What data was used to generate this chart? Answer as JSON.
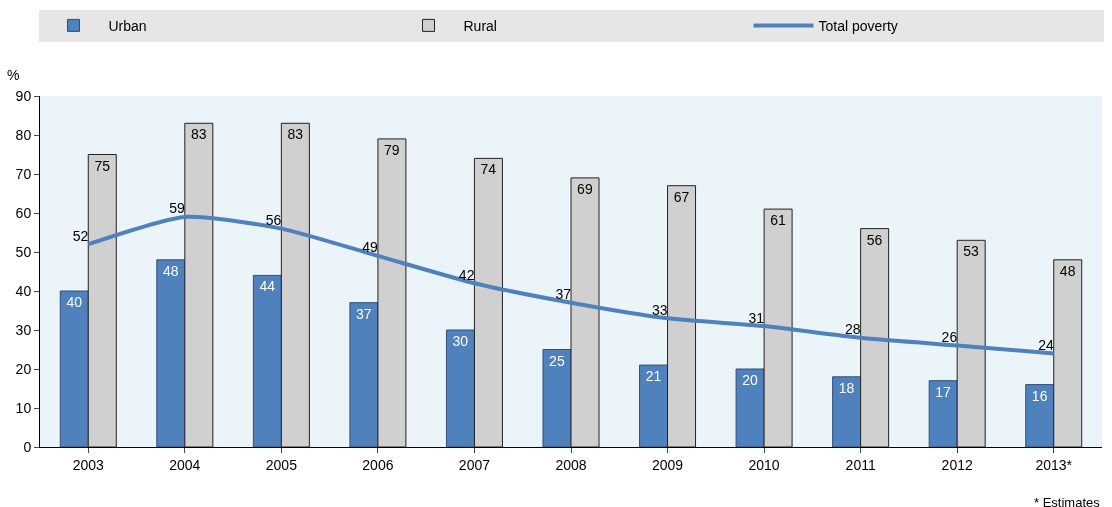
{
  "chart_data": {
    "type": "bar",
    "ylabel": "%",
    "categories": [
      "2003",
      "2004",
      "2005",
      "2006",
      "2007",
      "2008",
      "2009",
      "2010",
      "2011",
      "2012",
      "2013*"
    ],
    "series": [
      {
        "name": "Urban",
        "color": "#4f81bd",
        "values": [
          40,
          48,
          44,
          37,
          30,
          25,
          21,
          20,
          18,
          17,
          16
        ]
      },
      {
        "name": "Rural",
        "color": "#d0d0d0",
        "values": [
          75,
          83,
          83,
          79,
          74,
          69,
          67,
          61,
          56,
          53,
          48
        ]
      },
      {
        "name": "Total poverty",
        "type": "line",
        "color": "#4f81bd",
        "values": [
          52,
          59,
          56,
          49,
          42,
          37,
          33,
          31,
          28,
          26,
          24
        ]
      }
    ],
    "ylim": [
      0,
      90
    ],
    "yticks": [
      0,
      10,
      20,
      30,
      40,
      50,
      60,
      70,
      80,
      90
    ],
    "data_labels": true,
    "legend": "top",
    "marker": "none",
    "line_style": "solid",
    "annotations": [
      "* Estimates"
    ]
  }
}
